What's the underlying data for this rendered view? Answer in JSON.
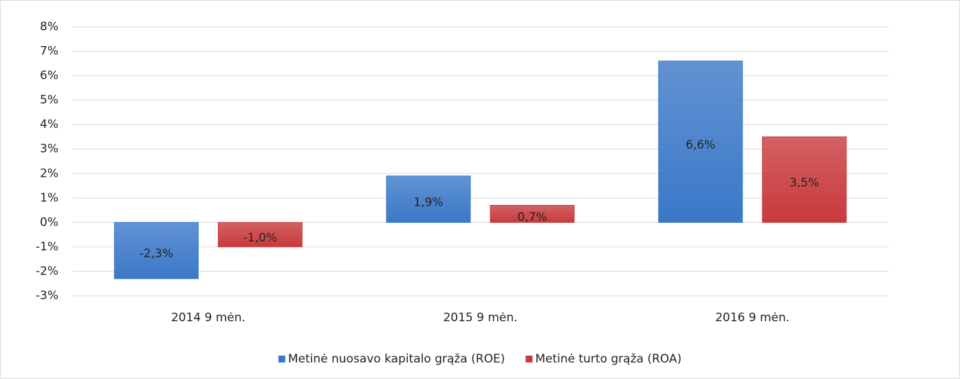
{
  "chart_data": {
    "type": "bar",
    "categories": [
      "2014  9 mėn.",
      "2015 9 mėn.",
      "2016 9 mėn."
    ],
    "series": [
      {
        "name": "Metinė nuosavo kapitalo grąža (ROE)",
        "color": "#3a78c8",
        "values": [
          -2.3,
          1.9,
          6.6
        ],
        "value_labels": [
          "-2,3%",
          "1,9%",
          "6,6%"
        ]
      },
      {
        "name": "Metinė turto grąža (ROA)",
        "color": "#c83a3c",
        "values": [
          -1.0,
          0.7,
          3.5
        ],
        "value_labels": [
          "-1,0%",
          "0,7%",
          "3,5%"
        ]
      }
    ],
    "ylim": [
      -3,
      8
    ],
    "yticks": [
      {
        "value": -3,
        "label": "-3%"
      },
      {
        "value": -2,
        "label": "-2%"
      },
      {
        "value": -1,
        "label": "-1%"
      },
      {
        "value": 0,
        "label": "0%"
      },
      {
        "value": 1,
        "label": "1%"
      },
      {
        "value": 2,
        "label": "2%"
      },
      {
        "value": 3,
        "label": "3%"
      },
      {
        "value": 4,
        "label": "4%"
      },
      {
        "value": 5,
        "label": "5%"
      },
      {
        "value": 6,
        "label": "6%"
      },
      {
        "value": 7,
        "label": "7%"
      },
      {
        "value": 8,
        "label": "8%"
      }
    ],
    "grid": true,
    "legend": "bottom"
  }
}
